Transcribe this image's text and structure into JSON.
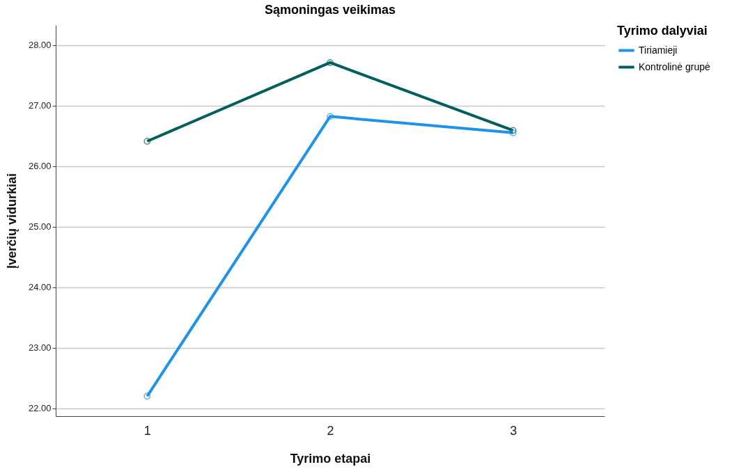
{
  "chart_data": {
    "type": "line",
    "title": "Sąmoningas veikimas",
    "xlabel": "Tyrimo etapai",
    "ylabel": "Įverčių vidurkiai",
    "legend_title": "Tyrimo dalyviai",
    "categories": [
      "1",
      "2",
      "3"
    ],
    "series": [
      {
        "name": "Tiriamieji",
        "color": "#1f93e8",
        "values": [
          22.2,
          26.82,
          26.55
        ]
      },
      {
        "name": "Kontrolinė grupė",
        "color": "#005e5c",
        "values": [
          26.41,
          27.71,
          26.59
        ]
      }
    ],
    "ylim": [
      21.87,
      28.33
    ],
    "yticks": [
      {
        "value": 22,
        "label": "22.00"
      },
      {
        "value": 23,
        "label": "23.00"
      },
      {
        "value": 24,
        "label": "24.00"
      },
      {
        "value": 25,
        "label": "25.00"
      },
      {
        "value": 26,
        "label": "26.00"
      },
      {
        "value": 27,
        "label": "27.00"
      },
      {
        "value": 28,
        "label": "28.00"
      }
    ],
    "grid": "y",
    "legend": "top right",
    "marker": "circle",
    "line_style": "solid"
  }
}
